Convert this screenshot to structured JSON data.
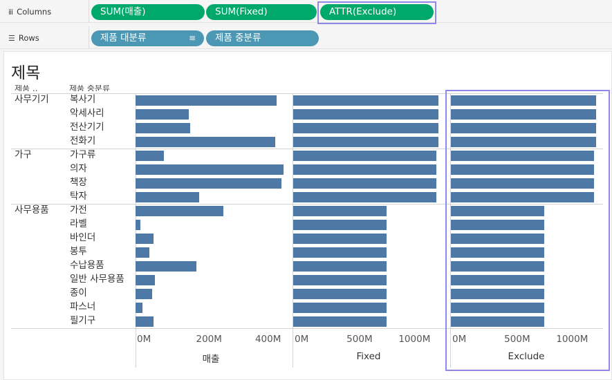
{
  "shelves": {
    "columns": {
      "label": "Columns",
      "icon": "columns-icon",
      "pills": [
        "SUM(매출)",
        "SUM(Fixed)",
        "ATTR(Exclude)"
      ]
    },
    "rows": {
      "label": "Rows",
      "icon": "rows-icon",
      "pills": [
        "제품 대분류",
        "제품 중분류"
      ]
    }
  },
  "view": {
    "title": "제목",
    "row_headers": [
      "제품 ..",
      "제품 중분류"
    ]
  },
  "colors": {
    "bar": "#4e79a7",
    "pill_measure": "#00a86b",
    "pill_dimension": "#4c97b4",
    "selection": "#8f87ea"
  },
  "chart_data": {
    "type": "bar",
    "orientation": "horizontal",
    "groups": [
      {
        "name": "사무기기",
        "subcategories": [
          "복사기",
          "악세사리",
          "전산기기",
          "전화기"
        ]
      },
      {
        "name": "가구",
        "subcategories": [
          "가구류",
          "의자",
          "책장",
          "탁자"
        ]
      },
      {
        "name": "사무용품",
        "subcategories": [
          "가전",
          "라벨",
          "바인더",
          "봉투",
          "수납용품",
          "일반 사무용품",
          "종이",
          "파스너",
          "필기구"
        ]
      }
    ],
    "panes": [
      {
        "axis_title": "매출",
        "ticks": [
          "0M",
          "200M",
          "400M"
        ],
        "xlim": [
          0,
          510
        ],
        "values": [
          478,
          180,
          184,
          472,
          97,
          500,
          494,
          216,
          297,
          17,
          60,
          47,
          207,
          65,
          55,
          24,
          60
        ]
      },
      {
        "axis_title": "Fixed",
        "ticks": [
          "0M",
          "500M",
          "1000M"
        ],
        "xlim": [
          0,
          1450
        ],
        "values": [
          1400,
          1400,
          1400,
          1400,
          1380,
          1380,
          1380,
          1380,
          900,
          900,
          900,
          900,
          900,
          900,
          900,
          900,
          900
        ]
      },
      {
        "axis_title": "Exclude",
        "ticks": [
          "0M",
          "500M",
          "1000M"
        ],
        "xlim": [
          0,
          1450
        ],
        "values": [
          1400,
          1400,
          1400,
          1400,
          1380,
          1380,
          1380,
          1380,
          900,
          900,
          900,
          900,
          900,
          900,
          900,
          900,
          900
        ]
      }
    ]
  }
}
